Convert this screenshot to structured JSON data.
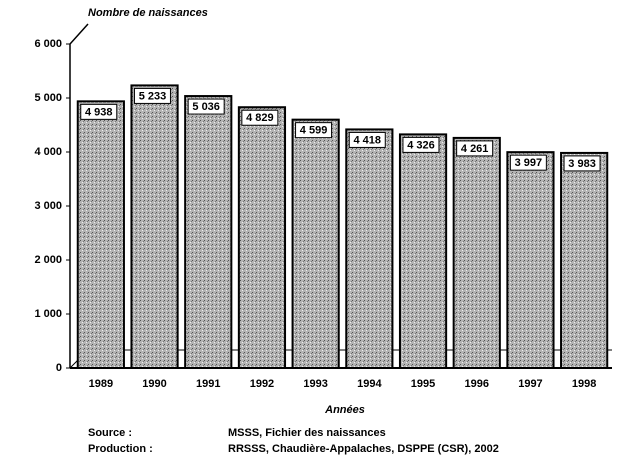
{
  "chart_data": {
    "type": "bar",
    "y_label": "Nombre de naissances",
    "x_label": "Années",
    "categories": [
      "1989",
      "1990",
      "1991",
      "1992",
      "1993",
      "1994",
      "1995",
      "1996",
      "1997",
      "1998"
    ],
    "values": [
      4938,
      5233,
      5036,
      4829,
      4599,
      4418,
      4326,
      4261,
      3997,
      3983
    ],
    "value_labels": [
      "4 938",
      "5 233",
      "5 036",
      "4 829",
      "4 599",
      "4 418",
      "4 326",
      "4 261",
      "3 997",
      "3 983"
    ],
    "color": "#a8a8a8",
    "ylim": [
      0,
      6000
    ],
    "yticks": [
      0,
      {
        "value": 1000,
        "label": "1 000"
      },
      {
        "value": 2000,
        "label": "2 000"
      },
      {
        "value": 3000,
        "label": "3 000"
      },
      {
        "value": 4000,
        "label": "4 000"
      },
      {
        "value": 5000,
        "label": "5 000"
      },
      {
        "value": 6000,
        "label": "6 000"
      }
    ],
    "grid": false,
    "source": {
      "label": "Source :",
      "text": "MSSS, Fichier des naissances"
    },
    "production": {
      "label": "Production :",
      "text": "RRSSS, Chaudière-Appalaches, DSPPE (CSR), 2002"
    }
  }
}
